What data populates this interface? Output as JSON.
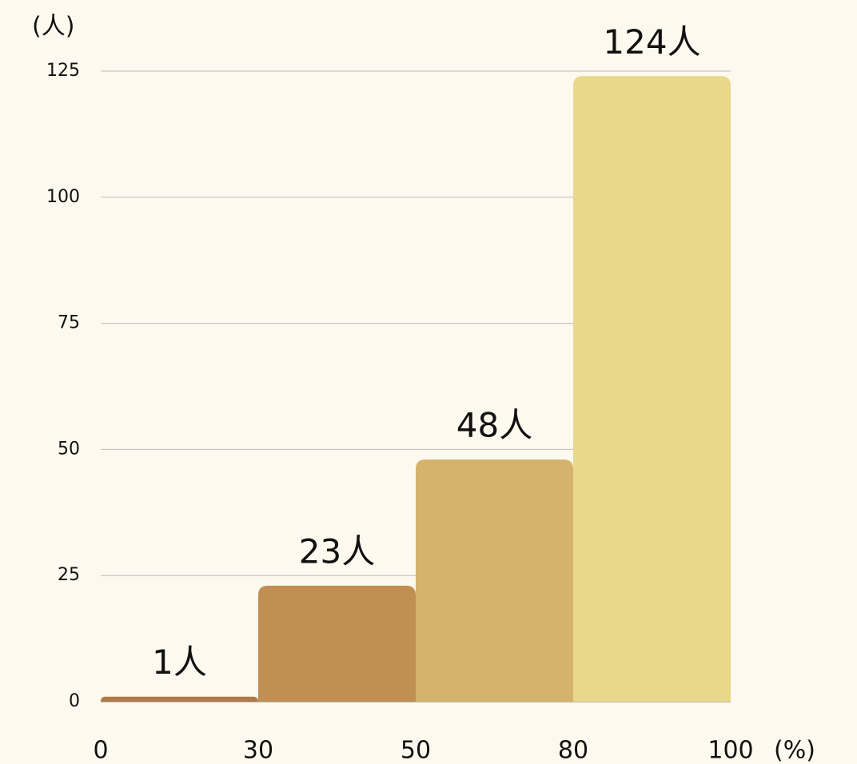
{
  "chart_data": {
    "type": "histogram",
    "y_label": "(人)",
    "x_label": "(%)",
    "bins": [
      0,
      30,
      50,
      80,
      100
    ],
    "values": [
      1,
      23,
      48,
      124
    ],
    "value_labels": [
      "1人",
      "23人",
      "48人",
      "124人"
    ],
    "colors": [
      "#b07a48",
      "#c08f51",
      "#d5b36c",
      "#e9d78a"
    ],
    "ylim": [
      0,
      125
    ],
    "yticks": [
      0,
      25,
      50,
      75,
      100,
      125
    ],
    "grid": true
  }
}
